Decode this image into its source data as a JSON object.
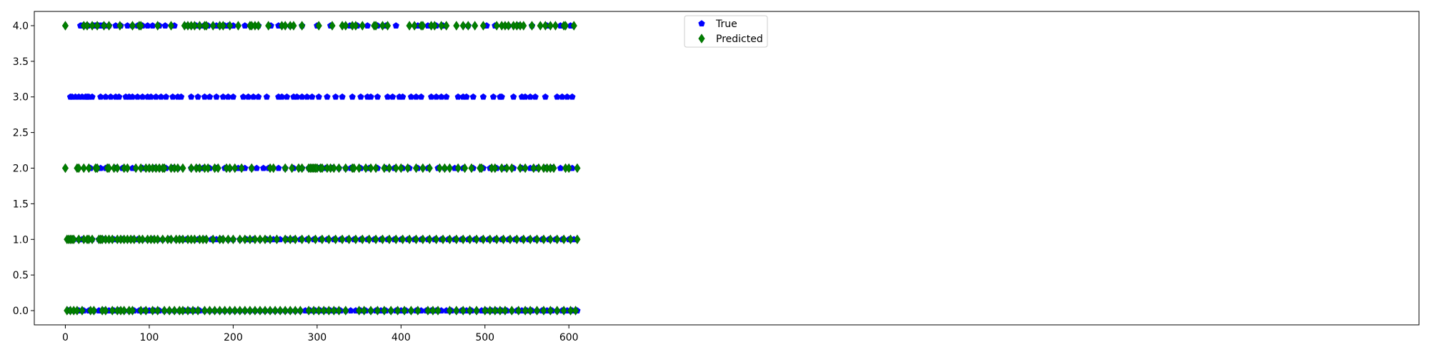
{
  "chart_data": {
    "type": "scatter",
    "title": "",
    "xlabel": "",
    "ylabel": "",
    "xlim": [
      -37,
      1613
    ],
    "ylim": [
      -0.2,
      4.2
    ],
    "xticks": [
      0,
      100,
      200,
      300,
      400,
      500,
      600
    ],
    "yticks": [
      0.0,
      0.5,
      1.0,
      1.5,
      2.0,
      2.5,
      3.0,
      3.5,
      4.0
    ],
    "xtick_labels": [
      "0",
      "100",
      "200",
      "300",
      "400",
      "500",
      "600"
    ],
    "ytick_labels": [
      "0.0",
      "0.5",
      "1.0",
      "1.5",
      "2.0",
      "2.5",
      "3.0",
      "3.5",
      "4.0"
    ],
    "grid": false,
    "legend": {
      "position": "upper-center"
    },
    "series": [
      {
        "name": "True",
        "marker": "pentagon",
        "color": "#0000ff",
        "points": {
          "4.0": [
            18,
            20,
            22,
            25,
            27,
            34,
            36,
            38,
            40,
            42,
            44,
            47,
            52,
            60,
            66,
            74,
            80,
            86,
            92,
            98,
            104,
            112,
            119,
            130,
            145,
            146,
            150,
            156,
            160,
            165,
            170,
            180,
            184,
            190,
            194,
            200,
            214,
            230,
            245,
            254,
            268,
            282,
            300,
            316,
            339,
            348,
            360,
            372,
            382,
            394,
            420,
            432,
            442,
            450,
            480,
            502,
            512,
            528,
            540,
            556,
            574,
            590,
            602
          ],
          "3.0": [
            6,
            8,
            12,
            16,
            20,
            24,
            26,
            28,
            32,
            42,
            48,
            54,
            60,
            64,
            72,
            76,
            80,
            86,
            92,
            98,
            102,
            108,
            114,
            120,
            128,
            134,
            138,
            150,
            158,
            166,
            172,
            180,
            188,
            194,
            200,
            212,
            218,
            224,
            230,
            240,
            254,
            258,
            264,
            272,
            276,
            282,
            288,
            294,
            302,
            312,
            322,
            330,
            342,
            352,
            360,
            364,
            372,
            384,
            390,
            398,
            402,
            412,
            418,
            424,
            436,
            442,
            448,
            454,
            468,
            474,
            478,
            486,
            498,
            510,
            518,
            520,
            534,
            544,
            548,
            554,
            560,
            572,
            586,
            592,
            598,
            604
          ],
          "2.0": [
            30,
            38,
            42,
            48,
            60,
            68,
            70,
            80,
            92,
            100,
            106,
            112,
            120,
            128,
            134,
            150,
            158,
            164,
            172,
            180,
            190,
            196,
            206,
            214,
            222,
            228,
            236,
            242,
            254,
            262,
            272,
            282,
            290,
            296,
            302,
            310,
            318,
            326,
            334,
            340,
            352,
            362,
            372,
            382,
            392,
            402,
            410,
            420,
            432,
            444,
            452,
            464,
            474,
            486,
            498,
            506,
            514,
            524,
            534,
            544,
            554,
            562,
            572,
            580,
            590,
            604
          ],
          "1.0": [
            4,
            10,
            16,
            20,
            26,
            32,
            40,
            46,
            52,
            58,
            62,
            68,
            74,
            80,
            86,
            92,
            98,
            104,
            110,
            116,
            124,
            132,
            138,
            144,
            150,
            158,
            166,
            174,
            180,
            186,
            194,
            200,
            208,
            216,
            224,
            232,
            240,
            248,
            256,
            264,
            272,
            280,
            288,
            296,
            304,
            312,
            320,
            328,
            336,
            344,
            352,
            360,
            368,
            376,
            384,
            392,
            400,
            408,
            416,
            424,
            432,
            440,
            448,
            456,
            464,
            472,
            480,
            488,
            496,
            504,
            512,
            520,
            528,
            536,
            544,
            552,
            560,
            568,
            576,
            584,
            592,
            600,
            606
          ],
          "0.0": [
            4,
            10,
            16,
            22,
            28,
            34,
            40,
            46,
            52,
            58,
            64,
            70,
            76,
            82,
            88,
            94,
            100,
            106,
            112,
            118,
            124,
            130,
            136,
            142,
            148,
            154,
            160,
            166,
            172,
            178,
            184,
            190,
            196,
            202,
            208,
            214,
            220,
            226,
            232,
            238,
            244,
            250,
            256,
            262,
            268,
            274,
            280,
            286,
            292,
            298,
            304,
            310,
            316,
            322,
            328,
            334,
            340,
            346,
            352,
            358,
            364,
            370,
            376,
            382,
            388,
            394,
            400,
            406,
            412,
            418,
            424,
            430,
            436,
            442,
            448,
            454,
            460,
            466,
            472,
            478,
            484,
            490,
            496,
            502,
            508,
            514,
            520,
            526,
            532,
            538,
            544,
            550,
            556,
            562,
            568,
            574,
            580,
            586,
            592,
            598,
            604,
            610
          ]
        }
      },
      {
        "name": "Predicted",
        "marker": "diamond",
        "color": "#008000",
        "points": {
          "4.0": [
            0,
            22,
            26,
            32,
            38,
            46,
            52,
            65,
            80,
            88,
            90,
            110,
            126,
            142,
            146,
            150,
            154,
            160,
            166,
            168,
            176,
            184,
            188,
            196,
            206,
            220,
            222,
            226,
            230,
            242,
            258,
            262,
            268,
            272,
            282,
            302,
            318,
            330,
            334,
            342,
            346,
            354,
            368,
            370,
            378,
            384,
            410,
            416,
            424,
            426,
            436,
            440,
            448,
            454,
            466,
            474,
            480,
            488,
            498,
            514,
            520,
            524,
            528,
            534,
            538,
            542,
            546,
            556,
            566,
            572,
            578,
            584,
            594,
            596,
            606
          ],
          "2.0": [
            0,
            14,
            16,
            22,
            28,
            36,
            38,
            50,
            52,
            58,
            62,
            70,
            74,
            84,
            90,
            96,
            100,
            104,
            108,
            112,
            116,
            118,
            126,
            130,
            134,
            140,
            150,
            156,
            160,
            166,
            170,
            178,
            182,
            192,
            196,
            202,
            210,
            222,
            244,
            248,
            262,
            270,
            278,
            282,
            290,
            292,
            294,
            296,
            298,
            300,
            304,
            306,
            312,
            316,
            320,
            326,
            334,
            342,
            344,
            350,
            358,
            364,
            370,
            380,
            386,
            394,
            400,
            408,
            418,
            426,
            434,
            446,
            452,
            458,
            468,
            476,
            484,
            494,
            496,
            508,
            512,
            520,
            526,
            532,
            542,
            548,
            558,
            564,
            570,
            574,
            578,
            582,
            596,
            600,
            610
          ],
          "1.0": [
            2,
            4,
            6,
            8,
            10,
            16,
            22,
            26,
            28,
            32,
            40,
            42,
            44,
            48,
            52,
            56,
            62,
            66,
            70,
            74,
            78,
            82,
            88,
            92,
            98,
            102,
            106,
            110,
            116,
            122,
            126,
            132,
            136,
            140,
            146,
            150,
            154,
            160,
            164,
            168,
            176,
            184,
            188,
            194,
            200,
            208,
            214,
            220,
            226,
            232,
            238,
            244,
            252,
            262,
            268,
            274,
            282,
            290,
            298,
            306,
            314,
            322,
            330,
            338,
            346,
            354,
            362,
            370,
            378,
            386,
            394,
            402,
            410,
            418,
            426,
            434,
            442,
            450,
            458,
            466,
            474,
            482,
            490,
            498,
            506,
            514,
            522,
            530,
            538,
            546,
            554,
            562,
            570,
            578,
            586,
            594,
            602,
            610
          ],
          "0.0": [
            2,
            6,
            10,
            14,
            20,
            30,
            34,
            44,
            48,
            56,
            62,
            66,
            70,
            76,
            80,
            90,
            96,
            104,
            110,
            118,
            124,
            130,
            136,
            140,
            146,
            152,
            158,
            166,
            172,
            178,
            184,
            190,
            196,
            202,
            208,
            214,
            220,
            226,
            232,
            238,
            244,
            250,
            256,
            262,
            268,
            274,
            280,
            290,
            296,
            302,
            308,
            314,
            320,
            326,
            334,
            350,
            356,
            364,
            372,
            380,
            388,
            396,
            404,
            412,
            420,
            432,
            438,
            444,
            458,
            466,
            474,
            482,
            490,
            500,
            506,
            512,
            518,
            524,
            532,
            540,
            548,
            554,
            562,
            570,
            578,
            586,
            594,
            602,
            608
          ]
        }
      }
    ]
  }
}
